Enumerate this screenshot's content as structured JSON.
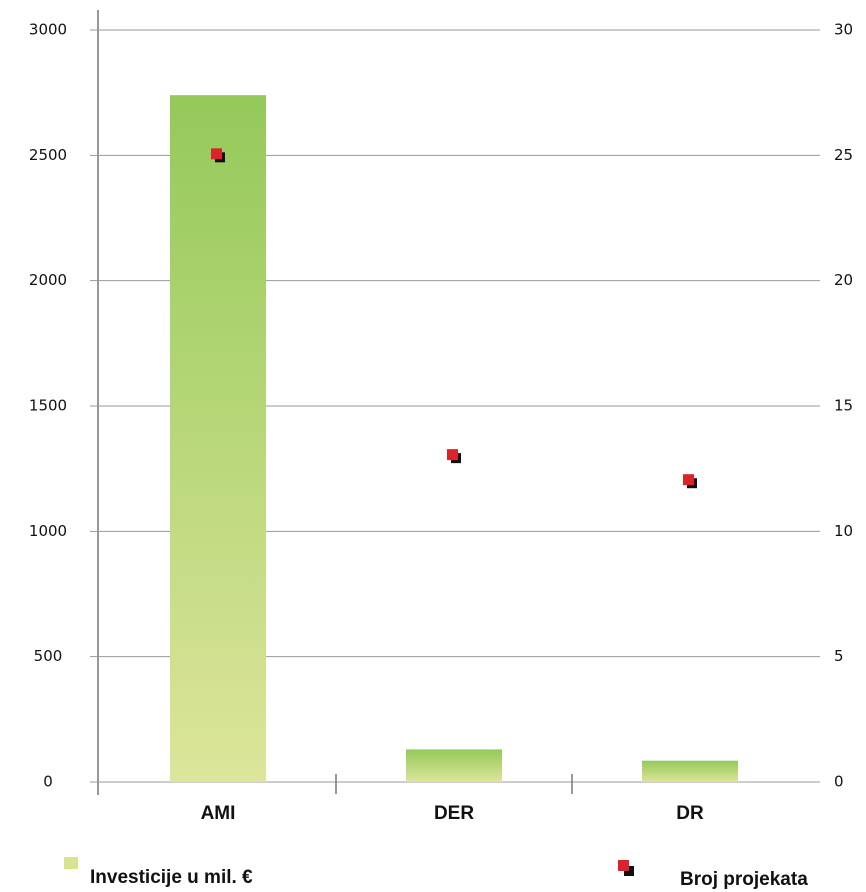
{
  "chart_data": {
    "type": "bar",
    "categories": [
      "AMI",
      "DER",
      "DR"
    ],
    "series": [
      {
        "name": "Investicije u mil. €",
        "type": "bar",
        "color": "#9dcc5f",
        "values": [
          2740,
          130,
          85
        ]
      },
      {
        "name": "Broj projekata",
        "type": "scatter",
        "axis": "y2",
        "color": "#d9232d",
        "values": [
          25,
          13,
          12
        ]
      }
    ],
    "ylim": [
      0,
      3000
    ],
    "yticks": [
      0,
      500,
      1000,
      1500,
      2000,
      2500,
      3000
    ],
    "y2lim": [
      0,
      30
    ],
    "y2ticks": [
      0,
      5,
      10,
      15,
      20,
      25,
      30
    ],
    "grid": true
  }
}
